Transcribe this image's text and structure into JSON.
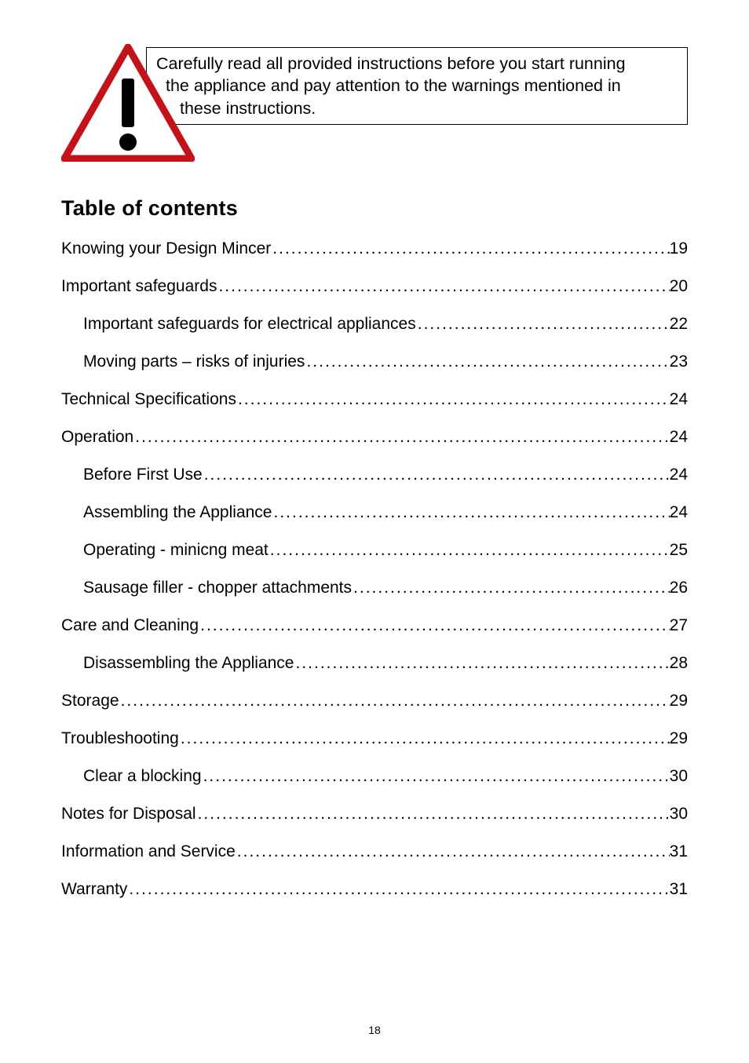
{
  "warning": {
    "line1": "Carefully read all provided instructions before you start running",
    "line2": "the appliance and pay attention to the warnings mentioned in",
    "line3": "these instructions.",
    "triangle_stroke": "#c4121a",
    "triangle_fill": "#ffffff",
    "bang_fill": "#000000"
  },
  "heading": "Table of contents",
  "toc": [
    {
      "label": "Knowing your Design Mincer",
      "page": "19",
      "indent": false
    },
    {
      "label": "Important safeguards",
      "page": "20",
      "indent": false
    },
    {
      "label": "Important safeguards for electrical appliances",
      "page": "22",
      "indent": true
    },
    {
      "label": "Moving parts – risks of injuries",
      "page": "23",
      "indent": true
    },
    {
      "label": "Technical Specifications",
      "page": "24",
      "indent": false
    },
    {
      "label": "Operation",
      "page": "24",
      "indent": false
    },
    {
      "label": "Before First Use",
      "page": "24",
      "indent": true
    },
    {
      "label": "Assembling the Appliance",
      "page": "24",
      "indent": true
    },
    {
      "label": "Operating - minicng meat",
      "page": "25",
      "indent": true
    },
    {
      "label": "Sausage filler - chopper attachments",
      "page": "26",
      "indent": true
    },
    {
      "label": "Care and Cleaning",
      "page": "27",
      "indent": false
    },
    {
      "label": "Disassembling the Appliance",
      "page": "28",
      "indent": true
    },
    {
      "label": "Storage",
      "page": "29",
      "indent": false
    },
    {
      "label": "Troubleshooting",
      "page": "29",
      "indent": false
    },
    {
      "label": "Clear a blocking",
      "page": "30",
      "indent": true
    },
    {
      "label": "Notes for Disposal",
      "page": "30",
      "indent": false
    },
    {
      "label": "Information and Service",
      "page": "31",
      "indent": false
    },
    {
      "label": "Warranty",
      "page": "31",
      "indent": false
    }
  ],
  "page_number": "18"
}
